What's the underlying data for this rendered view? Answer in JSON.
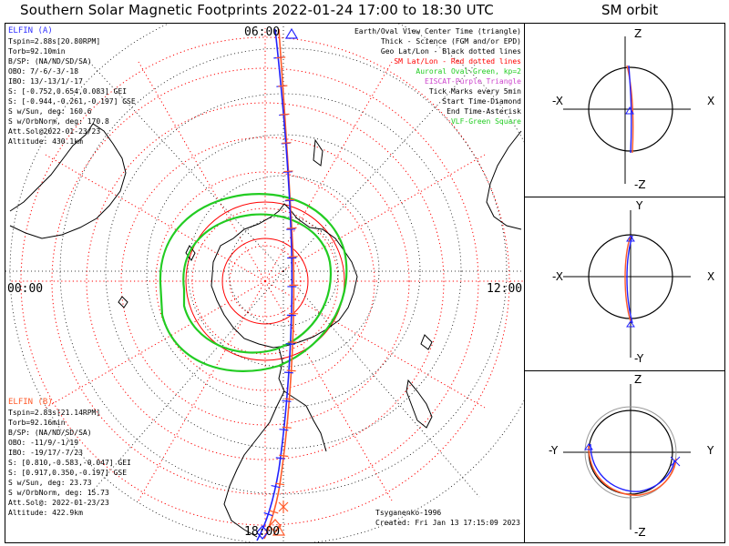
{
  "title": "Southern Solar Magnetic Footprints 2022-01-24 17:00 to 18:30 UTC",
  "sm_title": "SM orbit",
  "clock_labels": {
    "top": "06:00",
    "left": "00:00",
    "right": "12:00",
    "bottom": "18:00"
  },
  "elfin_a": {
    "name": "ELFIN (A)",
    "color": "#3030ff",
    "lines": [
      "Tspin=2.88s[20.80RPM]",
      "Torb=92.10min",
      "B/SP: (NA/ND/SD/SA)",
      "OBO: 7/-6/-3/-18",
      "IBO: 13/-13/1/-17",
      "S: [-0.752,0.654,0.083] GEI",
      "S: [-0.944,-0.261,-0.197] GSE",
      "S w/Sun, deg: 160.6",
      "S w/OrbNorm, deg: 170.8",
      "Att.Sol@2022-01-23/23",
      "Altitude: 430.1km"
    ]
  },
  "elfin_b": {
    "name": "ELFIN (B)",
    "color": "#ff5a2a",
    "lines": [
      "Tspin=2.83s[21.14RPM]",
      "Torb=92.16min",
      "B/SP: (NA/ND/SD/SA)",
      "OBO: -11/9/-1/19",
      "IBO: -19/17/-7/23",
      "S: [0.810,-0.583,-0.047] GEI",
      "S: [0.917,0.350,-0.197] GSE",
      "S w/Sun, deg: 23.73",
      "S w/OrbNorm, deg: 15.73",
      "Att.Sol@: 2022-01-23/23",
      "Altitude: 422.9km"
    ]
  },
  "legend": [
    {
      "text": "Earth/Oval View Center Time (triangle)",
      "color": "#000000"
    },
    {
      "text": "Thick - Science (FGM and/or EPD)",
      "color": "#000000"
    },
    {
      "text": "Geo Lat/Lon - Black dotted lines",
      "color": "#000000"
    },
    {
      "text": "SM Lat/Lon - Red dotted lines",
      "color": "#ff0000"
    },
    {
      "text": "Auroral Oval-Green, kp=2",
      "color": "#22cc22"
    },
    {
      "text": "EISCAT-Purple Triangle",
      "color": "#cc44cc"
    },
    {
      "text": "Tick Marks every 5min",
      "color": "#000000"
    },
    {
      "text": "Start Time-Diamond",
      "color": "#000000"
    },
    {
      "text": "End Time-Asterisk",
      "color": "#000000"
    },
    {
      "text": "VLF-Green Square",
      "color": "#22cc22"
    }
  ],
  "credits": {
    "model": "Tsyganenko-1996",
    "created": "Created: Fri Jan 13 17:15:09 2023"
  },
  "sm_panels": [
    {
      "top": "Z",
      "bottom": "-Z",
      "left": "-X",
      "right": "X"
    },
    {
      "top": "Y",
      "bottom": "-Y",
      "left": "-X",
      "right": "X"
    },
    {
      "top": "Z",
      "bottom": "-Z",
      "left": "-Y",
      "right": "Y"
    }
  ],
  "colors": {
    "sm_grid": "#ff0000",
    "geo_grid": "#000000",
    "oval": "#22cc22",
    "track_a": "#2222ff",
    "track_b": "#ff5a2a"
  }
}
